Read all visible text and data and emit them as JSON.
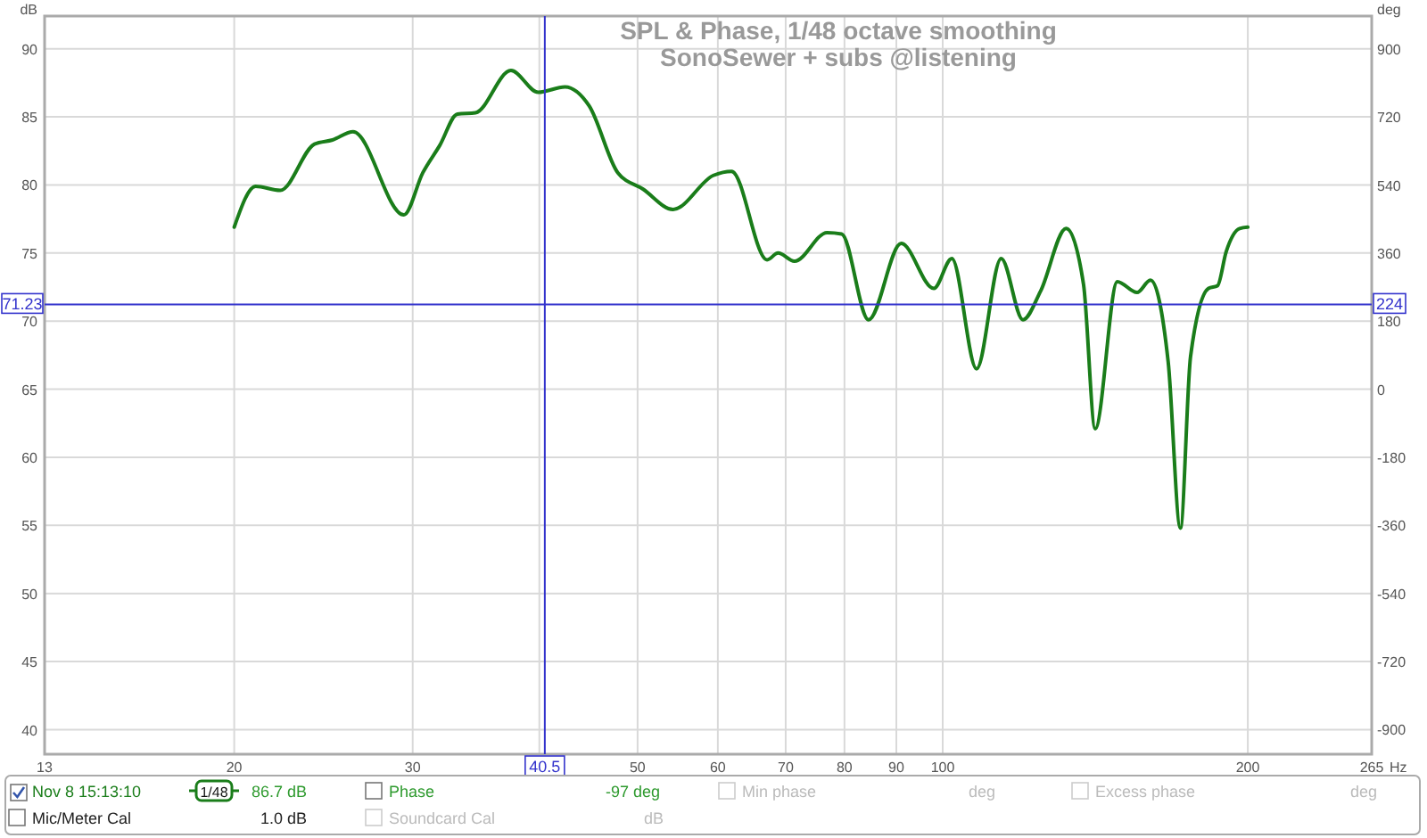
{
  "chart_data": {
    "type": "line",
    "title": "SPL & Phase, 1/48 octave smoothing",
    "subtitle": "SonoSewer + subs @listening",
    "xlabel": "Hz",
    "ylabel": "dB",
    "y2label": "deg",
    "log": "x",
    "grid": true,
    "legend": "bottom",
    "marker": "none",
    "line_style": "solid",
    "xlim": [
      13,
      265
    ],
    "xticks": [
      13,
      20,
      30,
      {
        "value": 40,
        "label": null
      },
      50,
      60,
      70,
      80,
      90,
      100,
      200,
      265
    ],
    "ylim": [
      38.2,
      92.4
    ],
    "yticks": [
      40,
      45,
      50,
      55,
      60,
      65,
      70,
      75,
      80,
      85,
      90
    ],
    "y2lim": [
      -965,
      987
    ],
    "y2ticks": [
      -900,
      -720,
      -540,
      -360,
      -180,
      0,
      180,
      360,
      540,
      720,
      900
    ],
    "ref_lines": [
      {
        "axis": "x",
        "value": 40.5,
        "label": "40.5",
        "color": "#3333cc"
      },
      {
        "axis": "y",
        "value": 71.23,
        "label": "71.23",
        "color": "#3333cc"
      }
    ],
    "series": [
      {
        "name": "Nov 8 15:13:10",
        "color": "#1a7d1a",
        "x": [
          20.0,
          21.0,
          22.2,
          24.0,
          25.0,
          26.2,
          29.4,
          30.7,
          31.9,
          33.2,
          34.6,
          37.5,
          39.9,
          42.4,
          44.8,
          47.8,
          50.6,
          54.2,
          59.4,
          61.9,
          67.1,
          68.8,
          71.4,
          76.9,
          79.5,
          84.5,
          91.0,
          98.0,
          102.1,
          108.0,
          114.2,
          120.0,
          124.9,
          132.4,
          137.7,
          141.4,
          148.7,
          155.5,
          160.3,
          166.9,
          171.6,
          175.6,
          182.9,
          186.7,
          190.4,
          196.3,
          200
        ],
        "values": [
          76.9,
          79.9,
          79.6,
          83.0,
          83.3,
          83.9,
          77.8,
          80.9,
          82.9,
          85.2,
          85.3,
          88.4,
          86.8,
          87.2,
          85.8,
          80.9,
          79.7,
          78.2,
          80.7,
          81.0,
          74.5,
          75.0,
          74.4,
          76.5,
          76.4,
          70.1,
          75.7,
          72.4,
          74.6,
          66.5,
          74.6,
          70.1,
          72.2,
          76.8,
          72.7,
          62.1,
          72.9,
          72.1,
          73.0,
          67.0,
          54.8,
          67.4,
          72.4,
          72.6,
          75.1,
          76.8,
          76.9
        ]
      }
    ],
    "annotations": [
      "1/48",
      "86.7 dB",
      "Phase",
      "-97 deg",
      "Min phase",
      "deg",
      "Excess phase",
      "deg",
      "Mic/Meter Cal",
      "1.0 dB",
      "Soundcard Cal",
      "dB",
      "224"
    ]
  }
}
